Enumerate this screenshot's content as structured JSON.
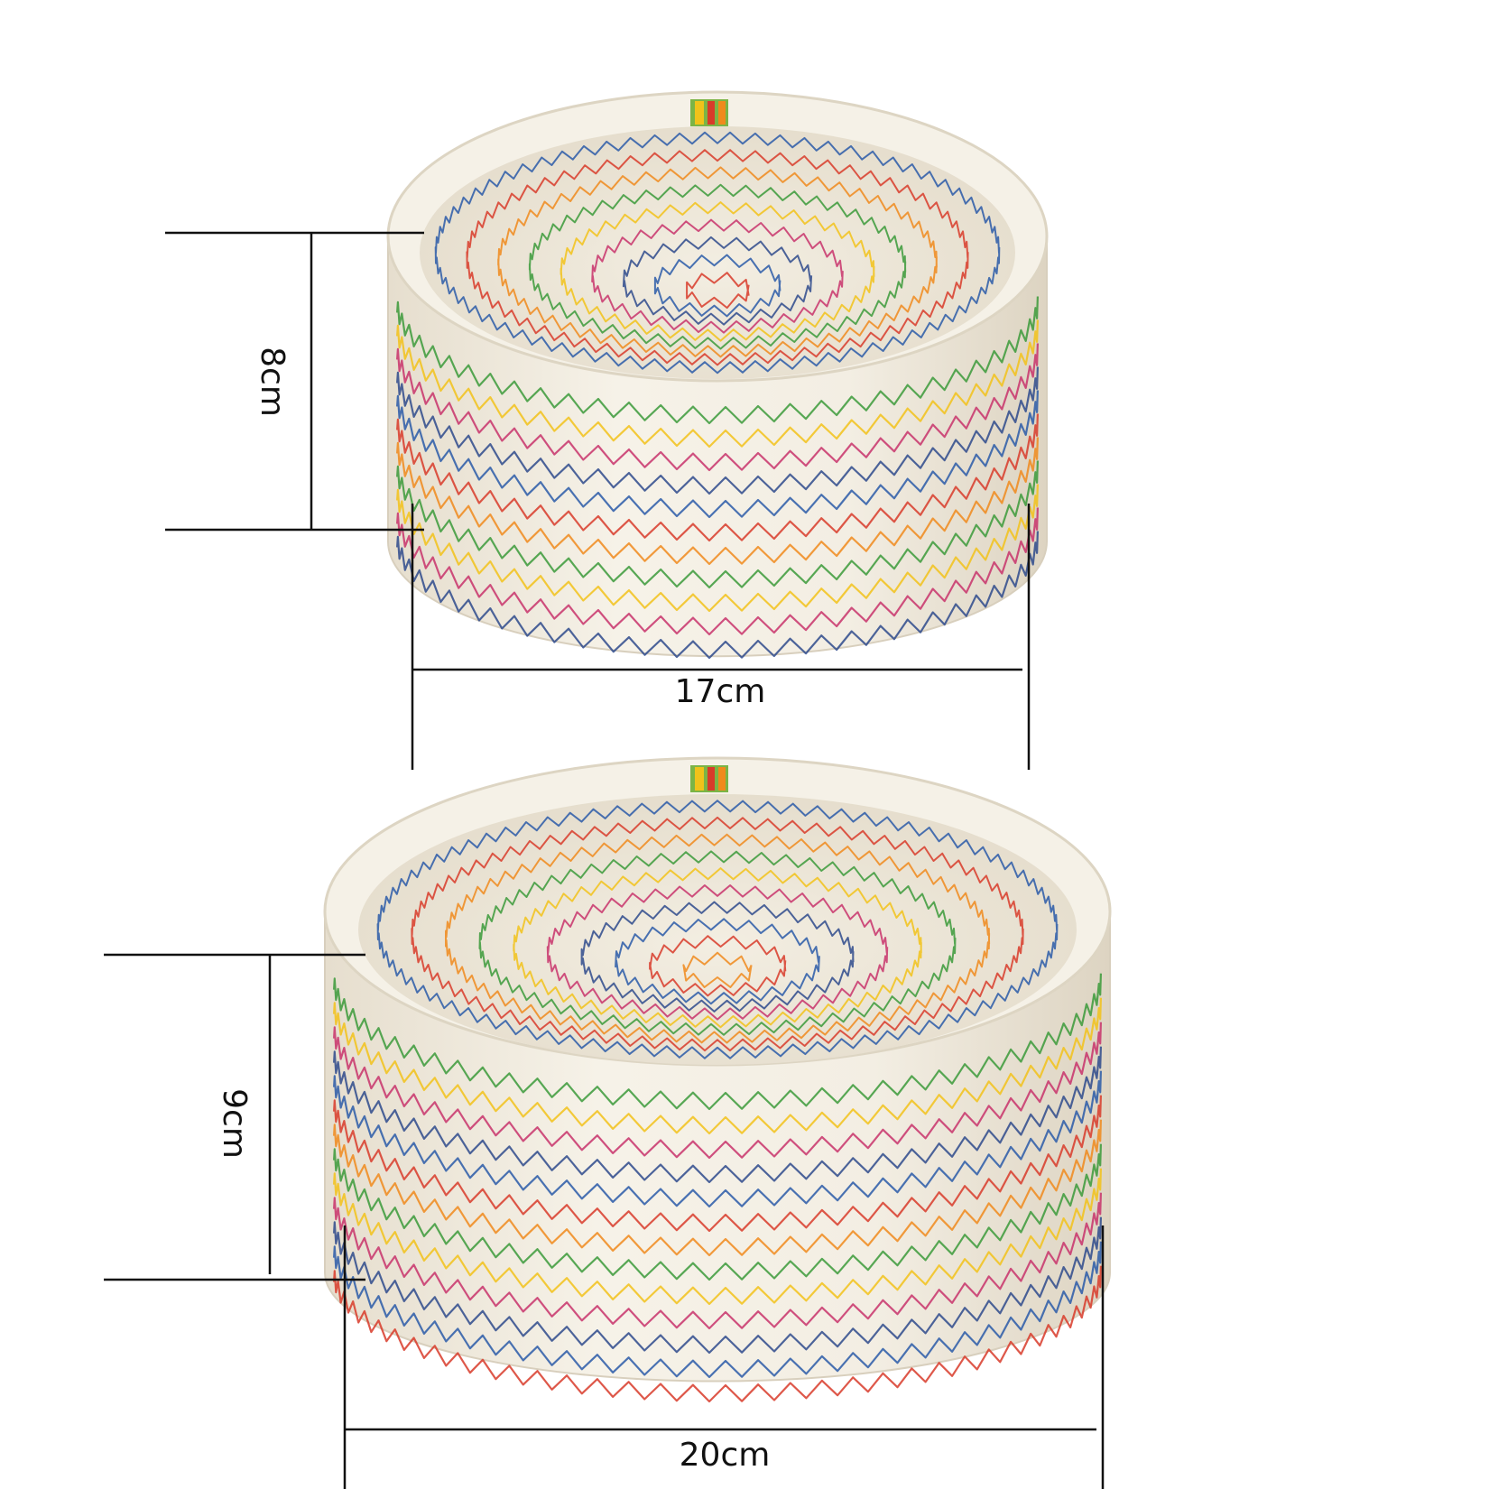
{
  "basket_small": {
    "height_label": "8cm",
    "diameter_label": "17cm"
  },
  "basket_large": {
    "height_label": "9cm",
    "diameter_label": "20cm"
  },
  "colors": {
    "rope": "#f4efe3",
    "rope_shadow": "#e2d9c6",
    "rope_inner": "#ece5d4",
    "dimension_line": "#111111",
    "stitch": [
      "#2a5aa8",
      "#d83b2a",
      "#f08a1c",
      "#3b9a3a",
      "#f2c21a",
      "#c8336b",
      "#2e4a8c"
    ]
  }
}
